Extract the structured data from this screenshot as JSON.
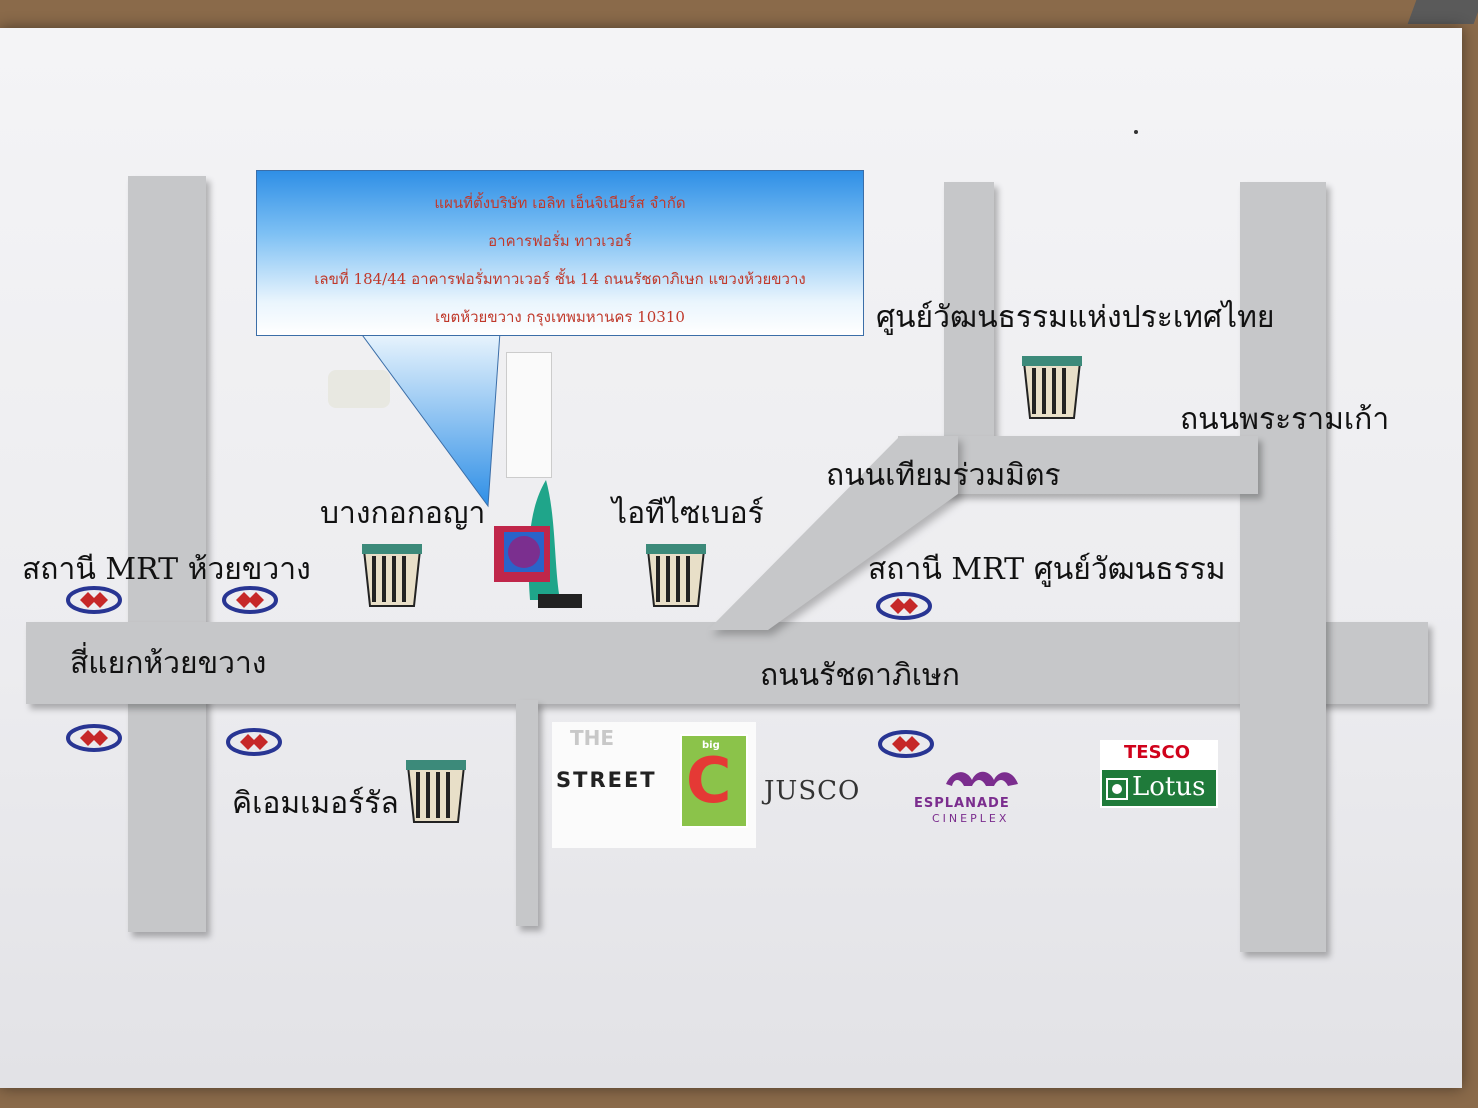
{
  "callout": {
    "line1": "แผนที่ตั้งบริษัท เอลิท เอ็นจิเนียร์ส จำกัด",
    "line2": "อาคารฟอรั่ม ทาวเวอร์",
    "line3": "เลขที่ 184/44 อาคารฟอรั่มทาวเวอร์ ชั้น 14 ถนนรัชดาภิเษก แขวงห้วยขวาง",
    "line4": "เขตห้วยขวาง กรุงเทพมหานคร 10310"
  },
  "labels": {
    "cultural_center": "ศูนย์วัฒนธรรมแห่งประเทศไทย",
    "rama9_road": "ถนนพระรามเก้า",
    "thiam_ruam_mit_road": "ถนนเทียมร่วมมิตร",
    "bangkok_insurance": "บางกอกอญา",
    "it_cyber": "ไอทีไซเบอร์",
    "mrt_huai_khwang": "สถานี MRT ห้วยขวาง",
    "mrt_cultural_center": "สถานี MRT ศูนย์วัฒนธรรม",
    "huai_khwang_intersection": "สี่แยกห้วยขวาง",
    "ratchadaphisek_road": "ถนนรัชดาภิเษก",
    "emerald": "คิเอมเมอร์รัล"
  },
  "logos": {
    "the_street_top": "THE",
    "the_street_bottom": "STREET",
    "big_c_letter": "C",
    "big_c_small": "big",
    "jusco": "JUSCO",
    "esplanade_top": "ESPLANADE",
    "esplanade_bottom": "CINEPLEX",
    "tesco": "TESCO",
    "lotus": "Lotus"
  },
  "colors": {
    "road": "#c6c7c9",
    "callout_text": "#c0392b",
    "mrt_red": "#c62828",
    "mrt_blue": "#283593",
    "esplanade_purple": "#7b2d8e",
    "lotus_green": "#1f7a3a",
    "tesco_red": "#d0021b",
    "bigc_green": "#8bc34a",
    "bigc_red": "#e53935"
  }
}
